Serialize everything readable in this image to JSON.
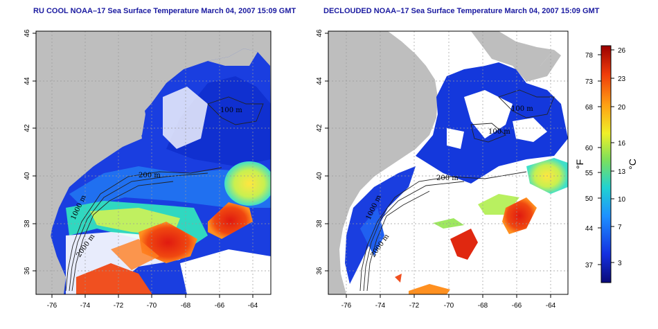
{
  "titles": {
    "left": "RU COOL NOAA–17 Sea Surface Temperature March 04, 2007 15:09 GMT",
    "right": "DECLOUDED NOAA–17 Sea Surface Temperature March 04, 2007 15:09 GMT"
  },
  "axes": {
    "lon_ticks": [
      "-76",
      "-74",
      "-72",
      "-70",
      "-68",
      "-66",
      "-64"
    ],
    "lat_ticks": [
      "36",
      "38",
      "40",
      "42",
      "44",
      "46"
    ]
  },
  "contours": {
    "left": [
      "100 m",
      "200 m",
      "1000 m",
      "2000 m"
    ],
    "right": [
      "100 m",
      "100 m",
      "200 m",
      "1000 m",
      "2000 m"
    ]
  },
  "colorbar": {
    "fahrenheit_label": "°F",
    "celsius_label": "°C",
    "fahrenheit_ticks": [
      "78",
      "73",
      "68",
      "60",
      "55",
      "50",
      "44",
      "37"
    ],
    "celsius_ticks": [
      "26",
      "23",
      "20",
      "16",
      "13",
      "10",
      "7",
      "3"
    ]
  },
  "colors": {
    "land": "#bebebe",
    "cloud": "#ffffff",
    "cold": "#1438dc",
    "warm": "#e0281a"
  }
}
